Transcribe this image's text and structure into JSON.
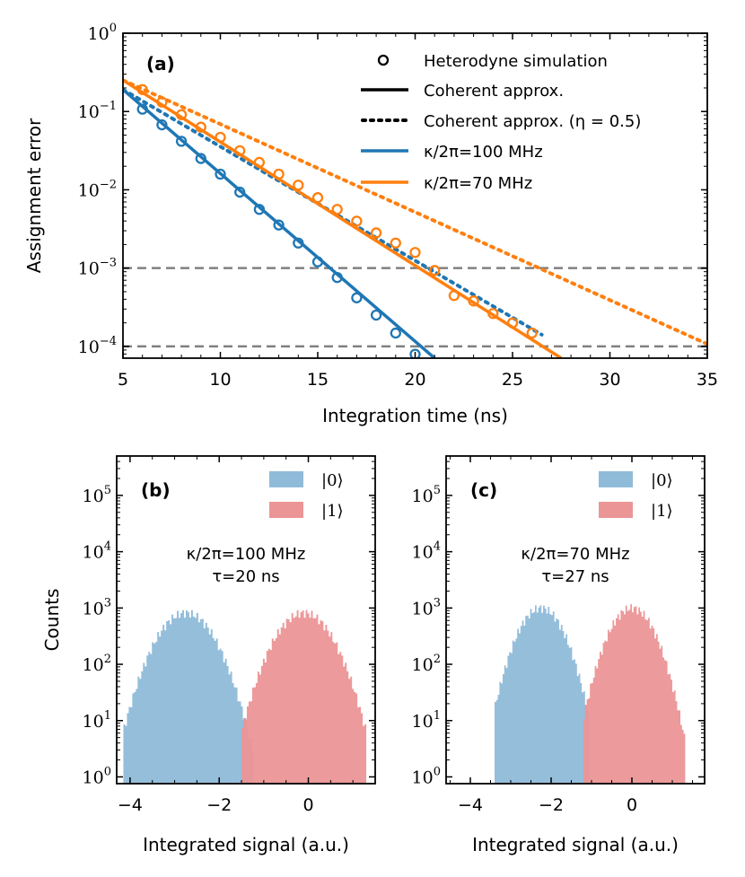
{
  "chart_data": [
    {
      "type": "line",
      "panel": "(a)",
      "xlabel": "Integration time (ns)",
      "ylabel": "Assignment error",
      "xlim": [
        5,
        35
      ],
      "ylim_log10": [
        -4.15,
        0
      ],
      "xticks": [
        5,
        10,
        15,
        20,
        25,
        30,
        35
      ],
      "yticks_exp": [
        0,
        -1,
        -2,
        -3,
        -4
      ],
      "ytick_base": "10",
      "reference_lines": [
        0.001,
        0.0001
      ],
      "colors": {
        "blue": "#1f77b4",
        "orange": "#ff7f0e",
        "gray": "#808080"
      },
      "legend": {
        "position": "top-right",
        "entries": [
          {
            "marker": "circle",
            "label": "Heterodyne simulation"
          },
          {
            "marker": "solid",
            "label": "Coherent approx."
          },
          {
            "marker": "dotted",
            "label": "Coherent approx. (η = 0.5)"
          },
          {
            "marker": "blue-line",
            "label": "κ/2π=100 MHz"
          },
          {
            "marker": "orange-line",
            "label": "κ/2π=70 MHz"
          }
        ]
      },
      "series": [
        {
          "name": "κ/2π=100 MHz",
          "color": "blue",
          "coherent_log10": {
            "x": [
              5,
              21
            ],
            "y": [
              -0.72,
              -4.15
            ]
          },
          "coherent_eta_log10": {
            "x": [
              5,
              26.5
            ],
            "y": [
              -0.72,
              -3.85
            ]
          },
          "heterodyne_x": [
            6,
            7,
            8,
            9,
            10,
            11,
            12,
            13,
            14,
            15,
            16,
            17,
            18,
            19,
            20
          ],
          "heterodyne_log10": [
            -0.97,
            -1.17,
            -1.38,
            -1.6,
            -1.8,
            -2.03,
            -2.25,
            -2.45,
            -2.68,
            -2.92,
            -3.12,
            -3.38,
            -3.6,
            -3.83,
            -4.1
          ]
        },
        {
          "name": "κ/2π=70 MHz",
          "color": "orange",
          "coherent_log10": {
            "x": [
              5,
              27.5
            ],
            "y": [
              -0.6,
              -4.15
            ]
          },
          "coherent_eta_log10": {
            "x": [
              5,
              35
            ],
            "y": [
              -0.6,
              -3.97
            ]
          },
          "heterodyne_x": [
            6,
            7,
            8,
            9,
            10,
            11,
            12,
            13,
            14,
            15,
            16,
            17,
            18,
            19,
            20,
            21,
            22,
            23,
            24,
            25,
            26
          ],
          "heterodyne_log10": [
            -0.72,
            -0.88,
            -1.04,
            -1.2,
            -1.33,
            -1.5,
            -1.65,
            -1.8,
            -1.94,
            -2.1,
            -2.25,
            -2.4,
            -2.55,
            -2.68,
            -2.8,
            -3.03,
            -3.35,
            -3.42,
            -3.58,
            -3.7,
            -3.83
          ]
        }
      ]
    },
    {
      "type": "histogram",
      "panel": "(b)",
      "ylabel": "Counts",
      "xlabel": "Integrated signal (a.u.)",
      "xlim": [
        -4.3,
        1.5
      ],
      "xticks": [
        -4,
        -2,
        0
      ],
      "xtick_labels": [
        "−4",
        "−2",
        "0"
      ],
      "ylim_log10": [
        -0.12,
        5.7
      ],
      "yticks_exp": [
        0,
        1,
        2,
        3,
        4,
        5
      ],
      "ytick_base": "10",
      "annotation": [
        "κ/2π=100 MHz",
        "τ=20 ns"
      ],
      "legend": [
        {
          "label": "|0⟩",
          "color": "#8fbbd9"
        },
        {
          "label": "|1⟩",
          "color": "#eb9596"
        }
      ],
      "distributions": [
        {
          "state": "|0⟩",
          "mean": -2.75,
          "sigma": 0.45,
          "peak_counts": 820,
          "range": [
            -4.15,
            -1.25
          ]
        },
        {
          "state": "|1⟩",
          "mean": -0.1,
          "sigma": 0.45,
          "peak_counts": 820,
          "range": [
            -1.5,
            1.3
          ]
        }
      ]
    },
    {
      "type": "histogram",
      "panel": "(c)",
      "xlabel": "Integrated signal (a.u.)",
      "xlim": [
        -4.6,
        1.8
      ],
      "xticks": [
        -4,
        -2,
        0
      ],
      "xtick_labels": [
        "−4",
        "−2",
        "0"
      ],
      "ylim_log10": [
        -0.12,
        5.7
      ],
      "yticks_exp": [
        0,
        1,
        2,
        3,
        4,
        5
      ],
      "ytick_base": "10",
      "annotation": [
        "κ/2π=70 MHz",
        "τ=27 ns"
      ],
      "legend": [
        {
          "label": "|0⟩",
          "color": "#8fbbd9"
        },
        {
          "label": "|1⟩",
          "color": "#eb9596"
        }
      ],
      "distributions": [
        {
          "state": "|0⟩",
          "mean": -2.25,
          "sigma": 0.4,
          "peak_counts": 1000,
          "range": [
            -3.4,
            -1.05
          ]
        },
        {
          "state": "|1⟩",
          "mean": 0.0,
          "sigma": 0.4,
          "peak_counts": 1000,
          "range": [
            -1.2,
            1.3
          ]
        }
      ]
    }
  ]
}
